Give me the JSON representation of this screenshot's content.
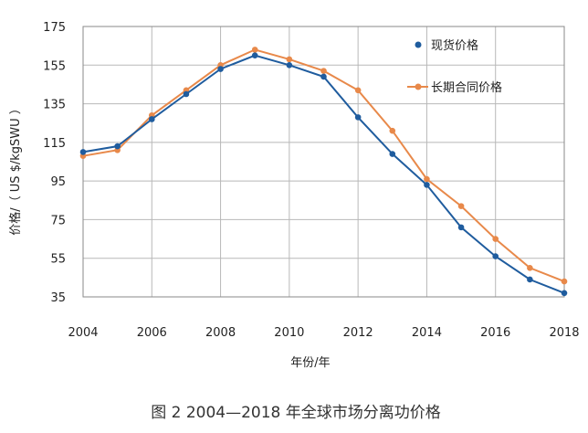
{
  "chart_data": {
    "type": "line",
    "title": "",
    "caption": "图 2   2004—2018 年全球市场分离功价格",
    "xlabel": "年份/年",
    "ylabel": "价格/（ US $/kgSWU ）",
    "xlim": [
      2004,
      2018
    ],
    "ylim": [
      35,
      175
    ],
    "x_ticks": [
      "2004",
      "2006",
      "2008",
      "2010",
      "2012",
      "2014",
      "2016",
      "2018"
    ],
    "y_ticks": [
      "35",
      "55",
      "75",
      "95",
      "115",
      "135",
      "155",
      "175"
    ],
    "grid": true,
    "legend_position": "top-right",
    "x": [
      2004,
      2005,
      2006,
      2007,
      2008,
      2009,
      2010,
      2011,
      2012,
      2013,
      2014,
      2015,
      2016,
      2017,
      2018
    ],
    "series": [
      {
        "name": "现货价格",
        "color": "#1f5c9e",
        "values": [
          110,
          113,
          127,
          140,
          153,
          160,
          155,
          149,
          128,
          109,
          93,
          71,
          56,
          44,
          37
        ]
      },
      {
        "name": "长期合同价格",
        "color": "#e8894a",
        "values": [
          108,
          111,
          129,
          142,
          155,
          163,
          158,
          152,
          142,
          121,
          96,
          82,
          65,
          50,
          43
        ]
      }
    ]
  }
}
